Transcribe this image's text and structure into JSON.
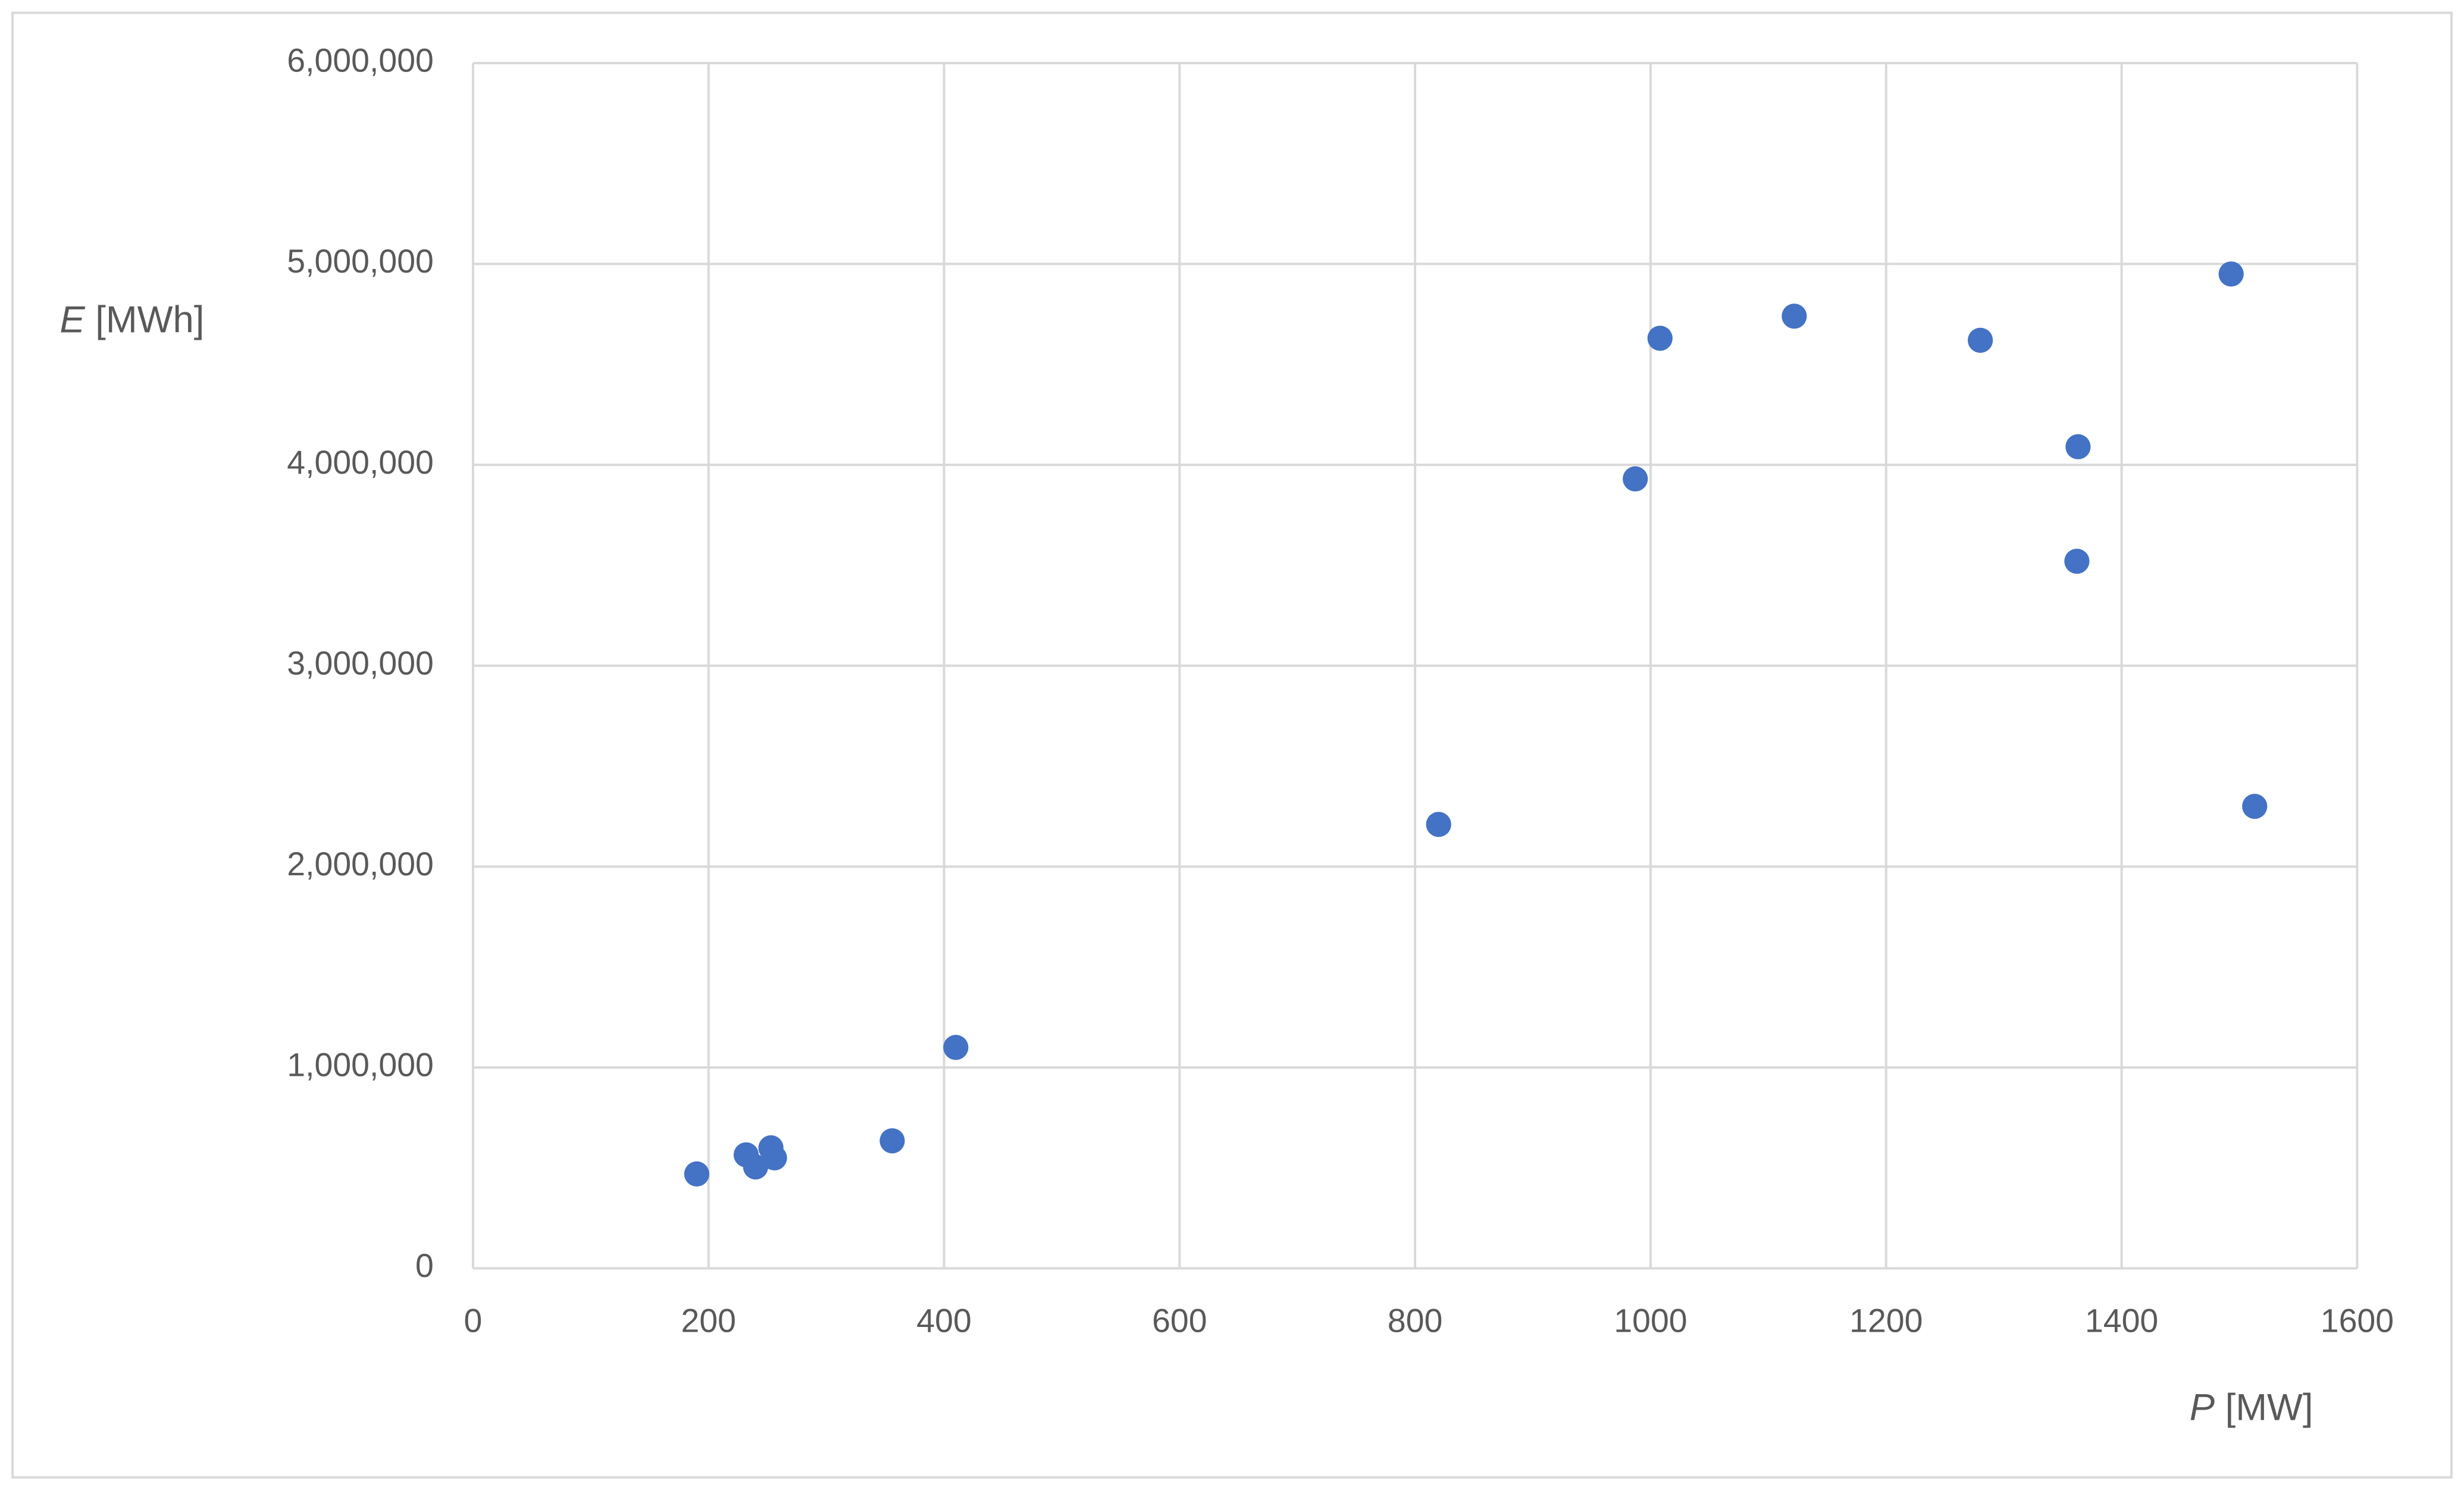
{
  "chart_data": {
    "type": "scatter",
    "x_label": "P [MW]",
    "y_label": "E [MWh]",
    "x": [
      190,
      232,
      240,
      253,
      256,
      356,
      410,
      820,
      987,
      1008,
      1122,
      1280,
      1363,
      1362,
      1493,
      1513
    ],
    "values": [
      470000,
      565000,
      505000,
      600000,
      550000,
      635000,
      1100000,
      2210000,
      3930000,
      4630000,
      4740000,
      4620000,
      4090000,
      3520000,
      4950000,
      2300000
    ],
    "color": "#4472c4",
    "xlim": [
      0,
      1600
    ],
    "xticks": [
      0,
      200,
      400,
      600,
      800,
      1000,
      1200,
      1400,
      1600
    ],
    "ylim": [
      0,
      6000000
    ],
    "yticks": [
      0,
      {
        "value": 1000000,
        "label": "1,000,000"
      },
      {
        "value": 2000000,
        "label": "2,000,000"
      },
      {
        "value": 3000000,
        "label": "3,000,000"
      },
      {
        "value": 4000000,
        "label": "4,000,000"
      },
      {
        "value": 5000000,
        "label": "5,000,000"
      },
      {
        "value": 6000000,
        "label": "6,000,000"
      }
    ],
    "grid": true
  }
}
